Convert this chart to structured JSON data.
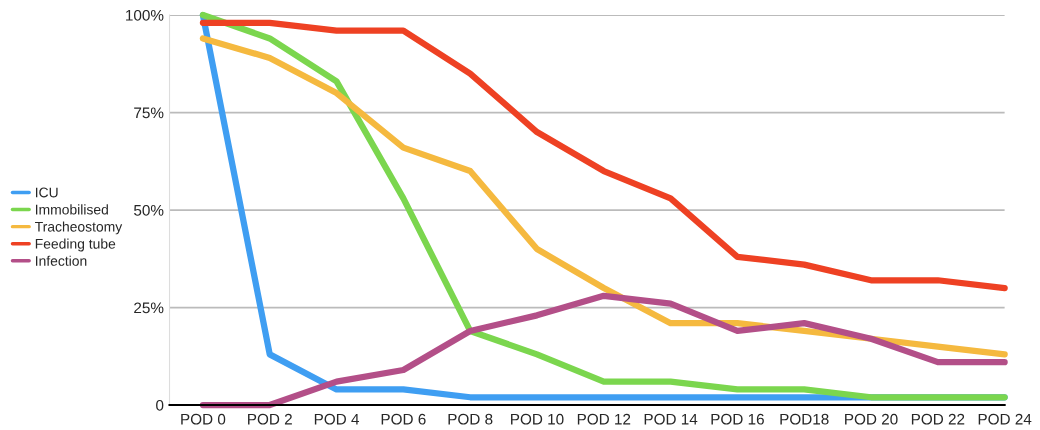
{
  "chart_data": {
    "type": "line",
    "categories": [
      "POD 0",
      "POD 2",
      "POD 4",
      "POD 6",
      "POD 8",
      "POD 10",
      "POD 12",
      "POD 14",
      "POD 16",
      "POD18",
      "POD 20",
      "POD 22",
      "POD 24"
    ],
    "series": [
      {
        "name": "ICU",
        "color": "#3f9ef2",
        "values": [
          100,
          13,
          4,
          4,
          2,
          2,
          2,
          2,
          2,
          2,
          2,
          2,
          2
        ]
      },
      {
        "name": "Immobilised",
        "color": "#7bd64e",
        "values": [
          100,
          94,
          83,
          53,
          19,
          13,
          6,
          6,
          4,
          4,
          2,
          2,
          2
        ]
      },
      {
        "name": "Tracheostomy",
        "color": "#f5b93f",
        "values": [
          94,
          89,
          80,
          66,
          60,
          40,
          30,
          21,
          21,
          19,
          17,
          15,
          13
        ]
      },
      {
        "name": "Feeding tube",
        "color": "#ee4123",
        "values": [
          98,
          98,
          96,
          96,
          85,
          70,
          60,
          53,
          38,
          36,
          32,
          32,
          30
        ]
      },
      {
        "name": "Infection",
        "color": "#b34f88",
        "values": [
          0,
          0,
          6,
          9,
          19,
          23,
          28,
          26,
          19,
          21,
          17,
          11,
          11
        ]
      }
    ],
    "ylim": [
      0,
      100
    ],
    "yticks": [
      0,
      {
        "value": 25,
        "label": "25%"
      },
      {
        "value": 50,
        "label": "50%"
      },
      {
        "value": 75,
        "label": "75%"
      },
      {
        "value": 100,
        "label": "100%"
      }
    ],
    "grid": "y",
    "legend": "left",
    "marker": "none",
    "line_style": "solid"
  }
}
